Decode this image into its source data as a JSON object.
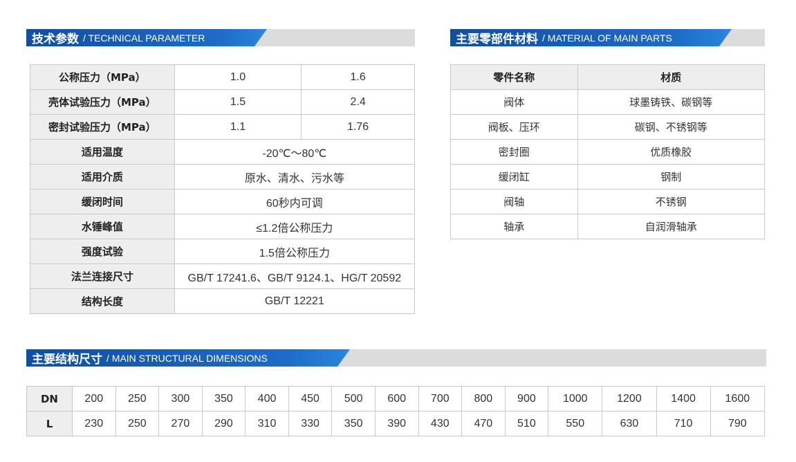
{
  "tech": {
    "title_cn": "技术参数",
    "title_en": "/ TECHNICAL PARAMETER",
    "rows": [
      {
        "label": "公称压力（MPa）",
        "values": [
          "1.0",
          "1.6"
        ]
      },
      {
        "label": "壳体试验压力（MPa）",
        "values": [
          "1.5",
          "2.4"
        ]
      },
      {
        "label": "密封试验压力（MPa）",
        "values": [
          "1.1",
          "1.76"
        ]
      },
      {
        "label": "适用温度",
        "values": [
          "-20℃～80℃"
        ]
      },
      {
        "label": "适用介质",
        "values": [
          "原水、清水、污水等"
        ]
      },
      {
        "label": "缓闭时间",
        "values": [
          "60秒内可调"
        ]
      },
      {
        "label": "水锤峰值",
        "values": [
          "≤1.2倍公称压力"
        ]
      },
      {
        "label": "强度试验",
        "values": [
          "1.5倍公称压力"
        ]
      },
      {
        "label": "法兰连接尺寸",
        "values": [
          "GB/T 17241.6、GB/T 9124.1、HG/T 20592"
        ]
      },
      {
        "label": "结构长度",
        "values": [
          "GB/T 12221"
        ]
      }
    ]
  },
  "material": {
    "title_cn": "主要零部件材料",
    "title_en": "/ MATERIAL OF MAIN PARTS",
    "headers": [
      "零件名称",
      "材质"
    ],
    "rows": [
      [
        "阀体",
        "球墨铸铁、碳钢等"
      ],
      [
        "阀板、压环",
        "碳钢、不锈钢等"
      ],
      [
        "密封圈",
        "优质橡胶"
      ],
      [
        "缓闭缸",
        "钢制"
      ],
      [
        "阀轴",
        "不锈钢"
      ],
      [
        "轴承",
        "自润滑轴承"
      ]
    ]
  },
  "dims": {
    "title_cn": "主要结构尺寸",
    "title_en": "/ MAIN STRUCTURAL DIMENSIONS",
    "rows": [
      {
        "label": "DN",
        "values": [
          "200",
          "250",
          "300",
          "350",
          "400",
          "450",
          "500",
          "600",
          "700",
          "800",
          "900",
          "1000",
          "1200",
          "1400",
          "1600"
        ]
      },
      {
        "label": "L",
        "values": [
          "230",
          "250",
          "270",
          "290",
          "310",
          "330",
          "350",
          "390",
          "430",
          "470",
          "510",
          "550",
          "630",
          "710",
          "790"
        ]
      }
    ]
  }
}
